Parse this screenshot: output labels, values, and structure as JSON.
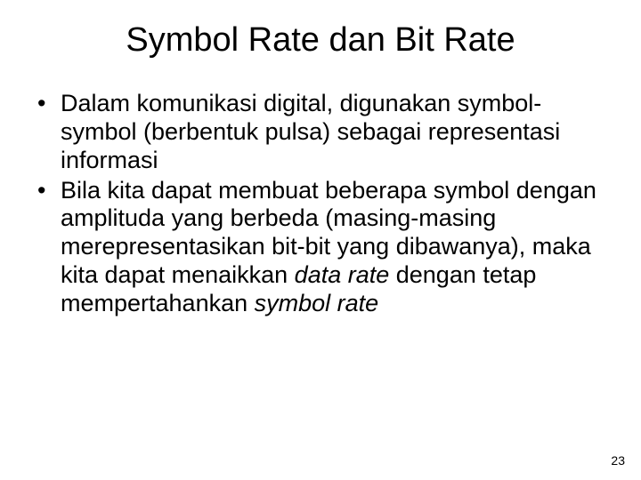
{
  "slide": {
    "title": "Symbol Rate dan Bit Rate",
    "title_fontsize": 38,
    "title_color": "#000000",
    "background_color": "#ffffff",
    "body_fontsize": 27,
    "body_lineheight": 1.18,
    "bullets": [
      {
        "runs": [
          {
            "text": "Dalam komunikasi digital, digunakan symbol-symbol (berbentuk pulsa) sebagai representasi informasi",
            "italic": false
          }
        ]
      },
      {
        "runs": [
          {
            "text": "Bila kita dapat membuat beberapa symbol dengan amplituda yang berbeda (masing-masing merepresentasikan bit-bit yang dibawanya), maka kita dapat menaikkan ",
            "italic": false
          },
          {
            "text": "data rate",
            "italic": true
          },
          {
            "text": " dengan tetap mempertahankan ",
            "italic": false
          },
          {
            "text": "symbol rate",
            "italic": true
          }
        ]
      }
    ],
    "page_number": "23",
    "pagenum_fontsize": 14,
    "pagenum_color": "#000000"
  }
}
